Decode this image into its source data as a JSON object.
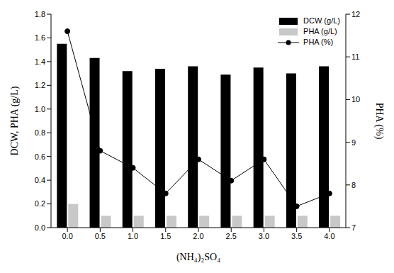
{
  "chart_data": {
    "type": "bar",
    "categories": [
      "0.0",
      "0.5",
      "1.0",
      "1.5",
      "2.0",
      "2.5",
      "3.0",
      "3.5",
      "4.0"
    ],
    "x_label": "(NH₄)₂SO₄",
    "y_label": "DCW, PHA (g/L)",
    "y2_label": "PHA (%)",
    "ylim": [
      0,
      1.8
    ],
    "yticks": [
      {
        "value": 0,
        "label": "0.0"
      },
      0.2,
      0.4,
      0.6,
      0.8,
      {
        "value": 1,
        "label": "1.0"
      },
      1.2,
      1.4,
      1.6,
      1.8
    ],
    "y2lim": [
      7,
      12
    ],
    "y2ticks": [
      7,
      8,
      9,
      10,
      11,
      12
    ],
    "legend": "top right",
    "series": [
      {
        "name": "DCW (g/L)",
        "type": "bar",
        "color": "#000000",
        "values": [
          1.55,
          1.43,
          1.32,
          1.34,
          1.36,
          1.29,
          1.35,
          1.3,
          1.36
        ]
      },
      {
        "name": "PHA (g/L)",
        "type": "bar",
        "color": "#c8c8c8",
        "values": [
          0.2,
          0.1,
          0.1,
          0.1,
          0.1,
          0.1,
          0.1,
          0.1,
          0.1
        ]
      },
      {
        "name": "PHA (%)",
        "type": "line",
        "color": "#000000",
        "marker": "circle",
        "axis": "y2",
        "values": [
          11.6,
          8.8,
          8.4,
          7.8,
          8.6,
          8.1,
          8.6,
          7.5,
          7.8
        ]
      }
    ]
  }
}
